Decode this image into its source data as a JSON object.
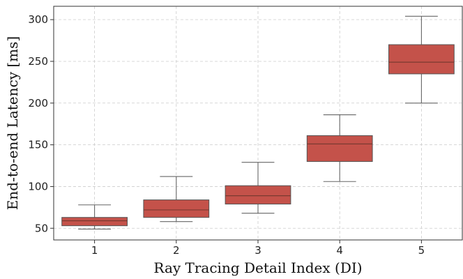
{
  "chart_data": {
    "type": "box",
    "title": "",
    "xlabel": "Ray Tracing Detail Index (DI)",
    "ylabel": "End-to-end Latency [ms]",
    "categories": [
      "1",
      "2",
      "3",
      "4",
      "5"
    ],
    "boxes": [
      {
        "label": "1",
        "whisker_low": 49,
        "q1": 53,
        "median": 59,
        "q3": 63,
        "whisker_high": 78
      },
      {
        "label": "2",
        "whisker_low": 58,
        "q1": 63,
        "median": 72,
        "q3": 84,
        "whisker_high": 112
      },
      {
        "label": "3",
        "whisker_low": 68,
        "q1": 79,
        "median": 89,
        "q3": 101,
        "whisker_high": 129
      },
      {
        "label": "4",
        "whisker_low": 106,
        "q1": 130,
        "median": 151,
        "q3": 161,
        "whisker_high": 186
      },
      {
        "label": "5",
        "whisker_low": 200,
        "q1": 235,
        "median": 249,
        "q3": 270,
        "whisker_high": 304
      }
    ],
    "ylim": [
      36,
      316
    ],
    "yticks": [
      50,
      100,
      150,
      200,
      250,
      300
    ],
    "grid": true,
    "box_color": "#c4524a"
  }
}
